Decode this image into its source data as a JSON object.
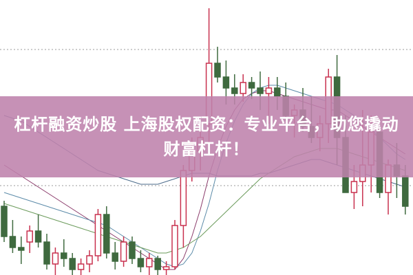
{
  "headline": {
    "line1": "杠杆融资炒股 上海股权配资：专业平台，助您撬动",
    "line2": "财富杠杆！"
  },
  "colors": {
    "banner": "#be82ac",
    "up": "#c8304e",
    "down": "#3f6a3f"
  },
  "chart_data": {
    "type": "candlestick",
    "candles": [
      [
        25,
        27,
        12,
        14
      ],
      [
        14,
        20,
        8,
        10
      ],
      [
        10,
        14,
        4,
        9
      ],
      [
        12,
        18,
        8,
        16
      ],
      [
        16,
        22,
        10,
        12
      ],
      [
        12,
        15,
        2,
        4
      ],
      [
        4,
        10,
        0,
        8
      ],
      [
        8,
        13,
        3,
        6
      ],
      [
        6,
        8,
        0,
        2
      ],
      [
        2,
        6,
        0,
        4
      ],
      [
        4,
        9,
        1,
        7
      ],
      [
        7,
        24,
        5,
        22
      ],
      [
        22,
        25,
        6,
        8
      ],
      [
        8,
        12,
        2,
        5
      ],
      [
        5,
        14,
        3,
        12
      ],
      [
        12,
        14,
        4,
        6
      ],
      [
        6,
        9,
        1,
        3
      ],
      [
        3,
        8,
        0,
        6
      ],
      [
        6,
        7,
        0,
        2
      ],
      [
        2,
        5,
        0,
        3
      ],
      [
        3,
        20,
        2,
        18
      ],
      [
        18,
        40,
        10,
        38
      ],
      [
        38,
        50,
        34,
        45
      ],
      [
        45,
        55,
        38,
        50
      ],
      [
        55,
        97,
        48,
        77
      ],
      [
        77,
        83,
        70,
        72
      ],
      [
        72,
        78,
        62,
        68
      ],
      [
        68,
        73,
        62,
        66
      ],
      [
        66,
        73,
        63,
        70
      ],
      [
        70,
        72,
        64,
        68
      ],
      [
        68,
        74,
        60,
        66
      ],
      [
        66,
        72,
        55,
        68
      ],
      [
        68,
        72,
        60,
        65
      ],
      [
        65,
        70,
        56,
        58
      ],
      [
        58,
        62,
        50,
        60
      ],
      [
        60,
        68,
        52,
        54
      ],
      [
        54,
        65,
        48,
        50
      ],
      [
        50,
        58,
        45,
        55
      ],
      [
        55,
        75,
        48,
        72
      ],
      [
        72,
        80,
        40,
        50
      ],
      [
        50,
        58,
        30,
        30
      ],
      [
        30,
        40,
        24,
        34
      ],
      [
        34,
        60,
        25,
        40
      ],
      [
        40,
        58,
        30,
        52
      ],
      [
        52,
        54,
        28,
        30
      ],
      [
        30,
        42,
        22,
        40
      ],
      [
        40,
        48,
        28,
        36
      ],
      [
        36,
        40,
        22,
        25
      ]
    ],
    "ma_lines": [
      [
        58,
        57,
        56,
        54,
        52,
        50,
        48,
        46,
        44,
        42,
        40,
        38,
        37,
        36,
        35,
        34,
        33,
        33,
        33,
        34,
        35,
        36,
        37,
        37,
        37,
        36,
        36,
        36,
        36,
        36,
        37,
        37,
        38,
        39,
        40,
        41,
        42,
        42,
        41,
        40,
        39,
        38,
        37,
        36,
        35,
        34,
        33,
        32
      ],
      [
        40,
        38,
        36,
        34,
        32,
        30,
        28,
        26,
        24,
        22,
        20,
        18,
        16,
        14,
        12,
        10,
        8,
        6,
        4,
        2,
        2,
        6,
        14,
        24,
        36,
        46,
        54,
        60,
        64,
        66,
        67,
        67,
        66,
        65,
        64,
        63,
        62,
        61,
        60,
        60,
        58,
        56,
        54,
        52,
        50,
        48,
        46,
        44
      ],
      [
        30,
        29,
        28,
        27,
        26,
        25,
        24,
        23,
        22,
        21,
        20,
        19,
        18,
        16,
        14,
        12,
        10,
        8,
        6,
        4,
        3,
        4,
        8,
        16,
        26,
        38,
        48,
        56,
        62,
        66,
        68,
        69,
        69,
        68,
        67,
        66,
        65,
        64,
        63,
        62,
        60,
        58,
        56,
        53,
        50,
        47,
        44,
        42
      ],
      [
        26,
        25,
        24,
        23,
        22,
        21,
        20,
        19,
        18,
        17,
        16,
        15,
        14,
        13,
        12,
        11,
        10,
        9,
        8,
        8,
        9,
        10,
        12,
        14,
        17,
        20,
        23,
        26,
        29,
        32,
        35,
        37,
        39,
        41,
        43,
        44,
        45,
        46,
        46,
        46,
        45,
        44,
        43,
        42,
        41,
        40,
        39,
        38
      ]
    ]
  }
}
